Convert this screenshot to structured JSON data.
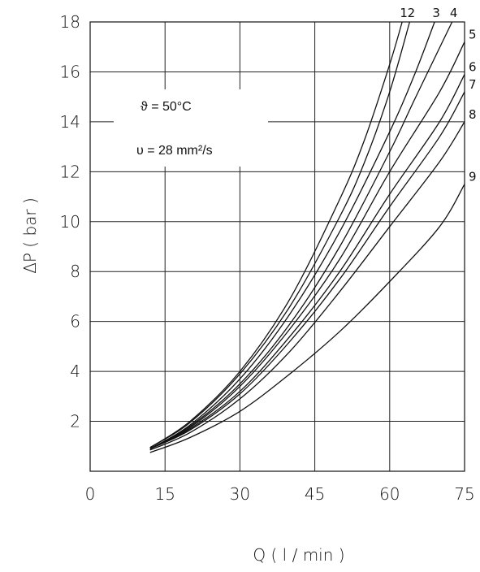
{
  "chart_data": {
    "type": "line",
    "title": "",
    "xlabel": "Q   ( l / min )",
    "ylabel": "ΔP ( bar )",
    "xlim": [
      0,
      75
    ],
    "ylim": [
      0,
      18
    ],
    "x_ticks": [
      0,
      15,
      30,
      45,
      60,
      75
    ],
    "y_ticks": [
      2,
      4,
      6,
      8,
      10,
      12,
      14,
      16,
      18
    ],
    "x_tick_labels": [
      "0",
      "15",
      "30",
      "45",
      "60",
      "75"
    ],
    "y_tick_labels": [
      "2",
      "4",
      "6",
      "8",
      "10",
      "12",
      "14",
      "16",
      "18"
    ],
    "grid": true,
    "annotations": [
      "ϑ = 50°C",
      "υ = 28 mm²/s"
    ],
    "series": [
      {
        "name": "1",
        "x": [
          12,
          20,
          30,
          40,
          50,
          55,
          60,
          62.5
        ],
        "y": [
          0.95,
          2.0,
          4.0,
          6.9,
          10.9,
          13.3,
          16.3,
          18.0
        ]
      },
      {
        "name": "2",
        "x": [
          12,
          20,
          30,
          40,
          50,
          55,
          60,
          64
        ],
        "y": [
          0.95,
          1.95,
          3.9,
          6.6,
          10.2,
          12.4,
          15.2,
          18.0
        ]
      },
      {
        "name": "3",
        "x": [
          12,
          20,
          30,
          40,
          50,
          60,
          65,
          69
        ],
        "y": [
          0.9,
          1.85,
          3.7,
          6.3,
          9.6,
          13.6,
          15.9,
          18.0
        ]
      },
      {
        "name": "4",
        "x": [
          12,
          20,
          30,
          40,
          50,
          60,
          65,
          72.5
        ],
        "y": [
          0.9,
          1.8,
          3.5,
          5.9,
          9.0,
          12.8,
          14.9,
          18.0
        ]
      },
      {
        "name": "5",
        "x": [
          12,
          20,
          30,
          40,
          50,
          60,
          70,
          75
        ],
        "y": [
          0.9,
          1.75,
          3.4,
          5.7,
          8.5,
          12.0,
          15.2,
          17.2
        ]
      },
      {
        "name": "6",
        "x": [
          12,
          20,
          30,
          40,
          50,
          60,
          70,
          75
        ],
        "y": [
          0.9,
          1.7,
          3.2,
          5.4,
          8.0,
          11.1,
          14.0,
          15.9
        ]
      },
      {
        "name": "7",
        "x": [
          12,
          20,
          30,
          40,
          50,
          60,
          70,
          75
        ],
        "y": [
          0.9,
          1.65,
          3.1,
          5.2,
          7.7,
          10.6,
          13.4,
          15.2
        ]
      },
      {
        "name": "8",
        "x": [
          12,
          20,
          30,
          40,
          50,
          60,
          70,
          75
        ],
        "y": [
          0.85,
          1.55,
          2.9,
          4.8,
          7.2,
          9.8,
          12.4,
          14.0
        ]
      },
      {
        "name": "9",
        "x": [
          12,
          20,
          30,
          40,
          50,
          60,
          70,
          75
        ],
        "y": [
          0.75,
          1.35,
          2.4,
          3.9,
          5.6,
          7.6,
          9.8,
          11.5
        ]
      }
    ]
  }
}
